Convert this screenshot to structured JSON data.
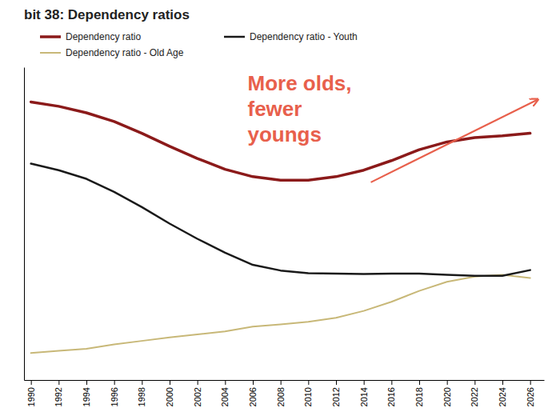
{
  "chart_data": {
    "type": "line",
    "title": "bit 38: Dependency ratios",
    "x": [
      1990,
      1992,
      1994,
      1996,
      1998,
      2000,
      2002,
      2004,
      2006,
      2008,
      2010,
      2012,
      2014,
      2016,
      2018,
      2020,
      2022,
      2024,
      2026
    ],
    "series": [
      {
        "name": "Dependency ratio",
        "color": "#8B1A1A",
        "values": [
          0.72,
          0.71,
          0.695,
          0.675,
          0.648,
          0.618,
          0.59,
          0.565,
          0.548,
          0.54,
          0.54,
          0.548,
          0.563,
          0.585,
          0.61,
          0.628,
          0.638,
          0.642,
          0.648
        ]
      },
      {
        "name": "Dependency ratio - Youth",
        "color": "#1a1a1a",
        "values": [
          0.578,
          0.563,
          0.543,
          0.513,
          0.478,
          0.44,
          0.405,
          0.373,
          0.345,
          0.332,
          0.326,
          0.325,
          0.324,
          0.325,
          0.325,
          0.322,
          0.32,
          0.32,
          0.333
        ]
      },
      {
        "name": "Dependency ratio - Old Age",
        "color": "#c8b878",
        "values": [
          0.142,
          0.147,
          0.152,
          0.162,
          0.17,
          0.178,
          0.185,
          0.192,
          0.203,
          0.208,
          0.214,
          0.223,
          0.239,
          0.26,
          0.285,
          0.306,
          0.318,
          0.322,
          0.315
        ]
      }
    ],
    "xlim": [
      1989.5,
      2027
    ],
    "xticks": [
      1990,
      1992,
      1994,
      1996,
      1998,
      2000,
      2002,
      2004,
      2006,
      2008,
      2010,
      2012,
      2014,
      2016,
      2018,
      2020,
      2022,
      2024,
      2026
    ],
    "ylim": [
      0.08,
      0.8
    ],
    "tick_labels": "x",
    "grid": false,
    "legend": "top",
    "annotations": [
      {
        "text": "More olds,",
        "color": "#e8604c"
      },
      {
        "text": "fewer",
        "color": "#e8604c"
      },
      {
        "text": "youngs",
        "color": "#e8604c"
      }
    ]
  }
}
